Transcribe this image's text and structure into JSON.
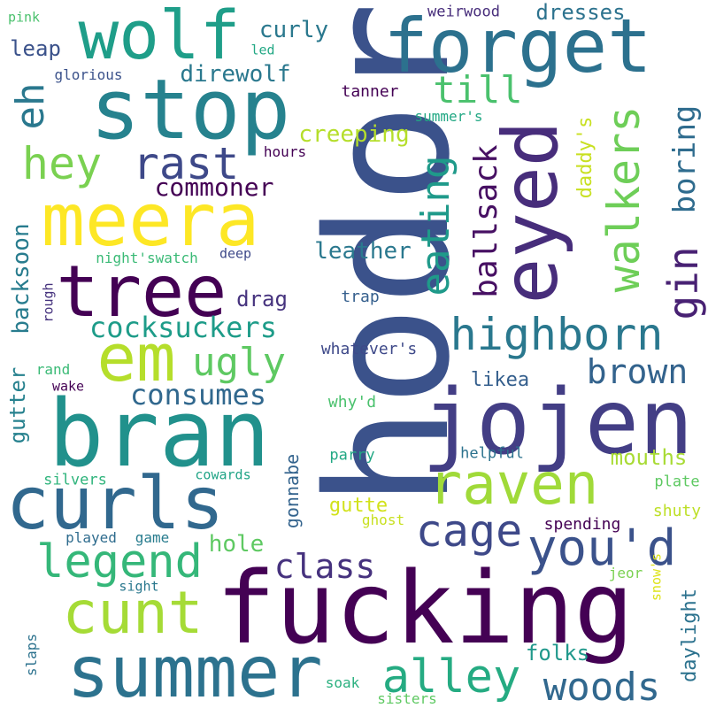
{
  "words": [
    {
      "text": "hodor",
      "color": "#3b528b"
    },
    {
      "text": "fucking",
      "color": "#440154"
    },
    {
      "text": "jojen",
      "color": "#433e85"
    },
    {
      "text": "bran",
      "color": "#21918c"
    },
    {
      "text": "forget",
      "color": "#2c718e"
    },
    {
      "text": "stop",
      "color": "#26828e"
    },
    {
      "text": "wolf",
      "color": "#1f9e89"
    },
    {
      "text": "summer",
      "color": "#2c728e"
    },
    {
      "text": "meera",
      "color": "#fde725"
    },
    {
      "text": "eyed",
      "color": "#472d7b"
    },
    {
      "text": "tree",
      "color": "#440154"
    },
    {
      "text": "curls",
      "color": "#31688e"
    },
    {
      "text": "raven",
      "color": "#a0da39"
    },
    {
      "text": "em",
      "color": "#b5de2b"
    },
    {
      "text": "cunt",
      "color": "#a5db36"
    },
    {
      "text": "highborn",
      "color": "#2a788e"
    },
    {
      "text": "legend",
      "color": "#35b779"
    },
    {
      "text": "you'd",
      "color": "#3b528b"
    },
    {
      "text": "walkers",
      "color": "#6ece58"
    },
    {
      "text": "eating",
      "color": "#1f9a8a"
    },
    {
      "text": "cage",
      "color": "#3e4989"
    },
    {
      "text": "alley",
      "color": "#25ab82"
    },
    {
      "text": "woods",
      "color": "#31688e"
    },
    {
      "text": "ugly",
      "color": "#5ec962"
    },
    {
      "text": "rast",
      "color": "#3e4989"
    },
    {
      "text": "hey",
      "color": "#7ad151"
    },
    {
      "text": "ballsack",
      "color": "#471063"
    },
    {
      "text": "gin",
      "color": "#482173"
    },
    {
      "text": "eh",
      "color": "#2a788e"
    },
    {
      "text": "till",
      "color": "#4ac16d"
    },
    {
      "text": "brown",
      "color": "#33638d"
    },
    {
      "text": "boring",
      "color": "#2f6c8e"
    },
    {
      "text": "class",
      "color": "#46327e"
    },
    {
      "text": "consumes",
      "color": "#31688e"
    },
    {
      "text": "cocksuckers",
      "color": "#1e9c89"
    },
    {
      "text": "commoner",
      "color": "#440154"
    },
    {
      "text": "backsoon",
      "color": "#287c8e"
    },
    {
      "text": "creeping",
      "color": "#b5de2b"
    },
    {
      "text": "direwolf",
      "color": "#2a788e"
    },
    {
      "text": "curly",
      "color": "#2a788e"
    },
    {
      "text": "dresses",
      "color": "#2c728e"
    },
    {
      "text": "leather",
      "color": "#2a788e"
    },
    {
      "text": "drag",
      "color": "#46337e"
    },
    {
      "text": "mouths",
      "color": "#a8db34"
    },
    {
      "text": "folks",
      "color": "#1f988b"
    },
    {
      "text": "gutter",
      "color": "#26818e"
    },
    {
      "text": "daylight",
      "color": "#2c728e"
    },
    {
      "text": "daddy's",
      "color": "#c8e020"
    },
    {
      "text": "hole",
      "color": "#5ec962"
    },
    {
      "text": "gonnabe",
      "color": "#33638d"
    },
    {
      "text": "likea",
      "color": "#355f8d"
    },
    {
      "text": "leap",
      "color": "#3b528b"
    },
    {
      "text": "gutte",
      "color": "#d2e21b"
    },
    {
      "text": "spending",
      "color": "#440154"
    },
    {
      "text": "tanner",
      "color": "#440154"
    },
    {
      "text": "weirwood",
      "color": "#472d7b"
    },
    {
      "text": "night'swatch",
      "color": "#3aba76"
    },
    {
      "text": "glorious",
      "color": "#3b528b"
    },
    {
      "text": "summer's",
      "color": "#22a884"
    },
    {
      "text": "hours",
      "color": "#440154"
    },
    {
      "text": "whatever's",
      "color": "#3e4989"
    },
    {
      "text": "trap",
      "color": "#355f8d"
    },
    {
      "text": "why'd",
      "color": "#4ac16d"
    },
    {
      "text": "parry",
      "color": "#22a884"
    },
    {
      "text": "helpful",
      "color": "#2c728e"
    },
    {
      "text": "plate",
      "color": "#5ec962"
    },
    {
      "text": "shuty",
      "color": "#bddf26"
    },
    {
      "text": "snow's",
      "color": "#dde318"
    },
    {
      "text": "jeor",
      "color": "#7ad151"
    },
    {
      "text": "ghost",
      "color": "#c8e020"
    },
    {
      "text": "soak",
      "color": "#2ab07f"
    },
    {
      "text": "sisters",
      "color": "#5ec962"
    },
    {
      "text": "slaps",
      "color": "#2c728e"
    },
    {
      "text": "silvers",
      "color": "#2fb47c"
    },
    {
      "text": "cowards",
      "color": "#20a486"
    },
    {
      "text": "played",
      "color": "#2f6c8e"
    },
    {
      "text": "game",
      "color": "#287c8e"
    },
    {
      "text": "sight",
      "color": "#2a788e"
    },
    {
      "text": "rough",
      "color": "#46337e"
    },
    {
      "text": "rand",
      "color": "#3aba76"
    },
    {
      "text": "wake",
      "color": "#440154"
    },
    {
      "text": "deep",
      "color": "#3e4989"
    },
    {
      "text": "pink",
      "color": "#4ac16d"
    },
    {
      "text": "led",
      "color": "#22a884"
    }
  ]
}
